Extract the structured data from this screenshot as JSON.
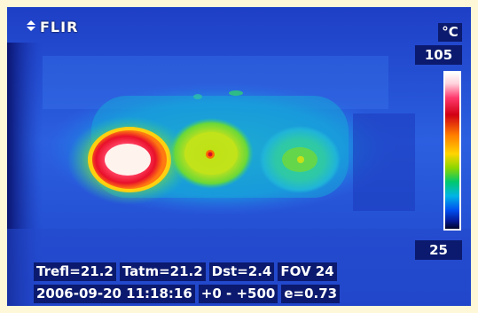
{
  "camera": {
    "brand": "FLIR",
    "brand_icon": "flir-logo-icon"
  },
  "temperature_scale": {
    "unit": "°C",
    "max": "105",
    "min": "25",
    "palette": [
      "#ffffff",
      "#ff3a6e",
      "#d10013",
      "#ff7d00",
      "#ffd500",
      "#8cd600",
      "#00c86e",
      "#00b4e6",
      "#0050f0",
      "#041a96"
    ]
  },
  "parameters": {
    "trefl": "Trefl=21.2",
    "tatm": "Tatm=21.2",
    "dst": "Dst=2.4",
    "fov": "FOV 24"
  },
  "status": {
    "datetime": "2006-09-20 11:18:16",
    "range": "+0 -  +500",
    "emissivity": "e=0.73"
  }
}
